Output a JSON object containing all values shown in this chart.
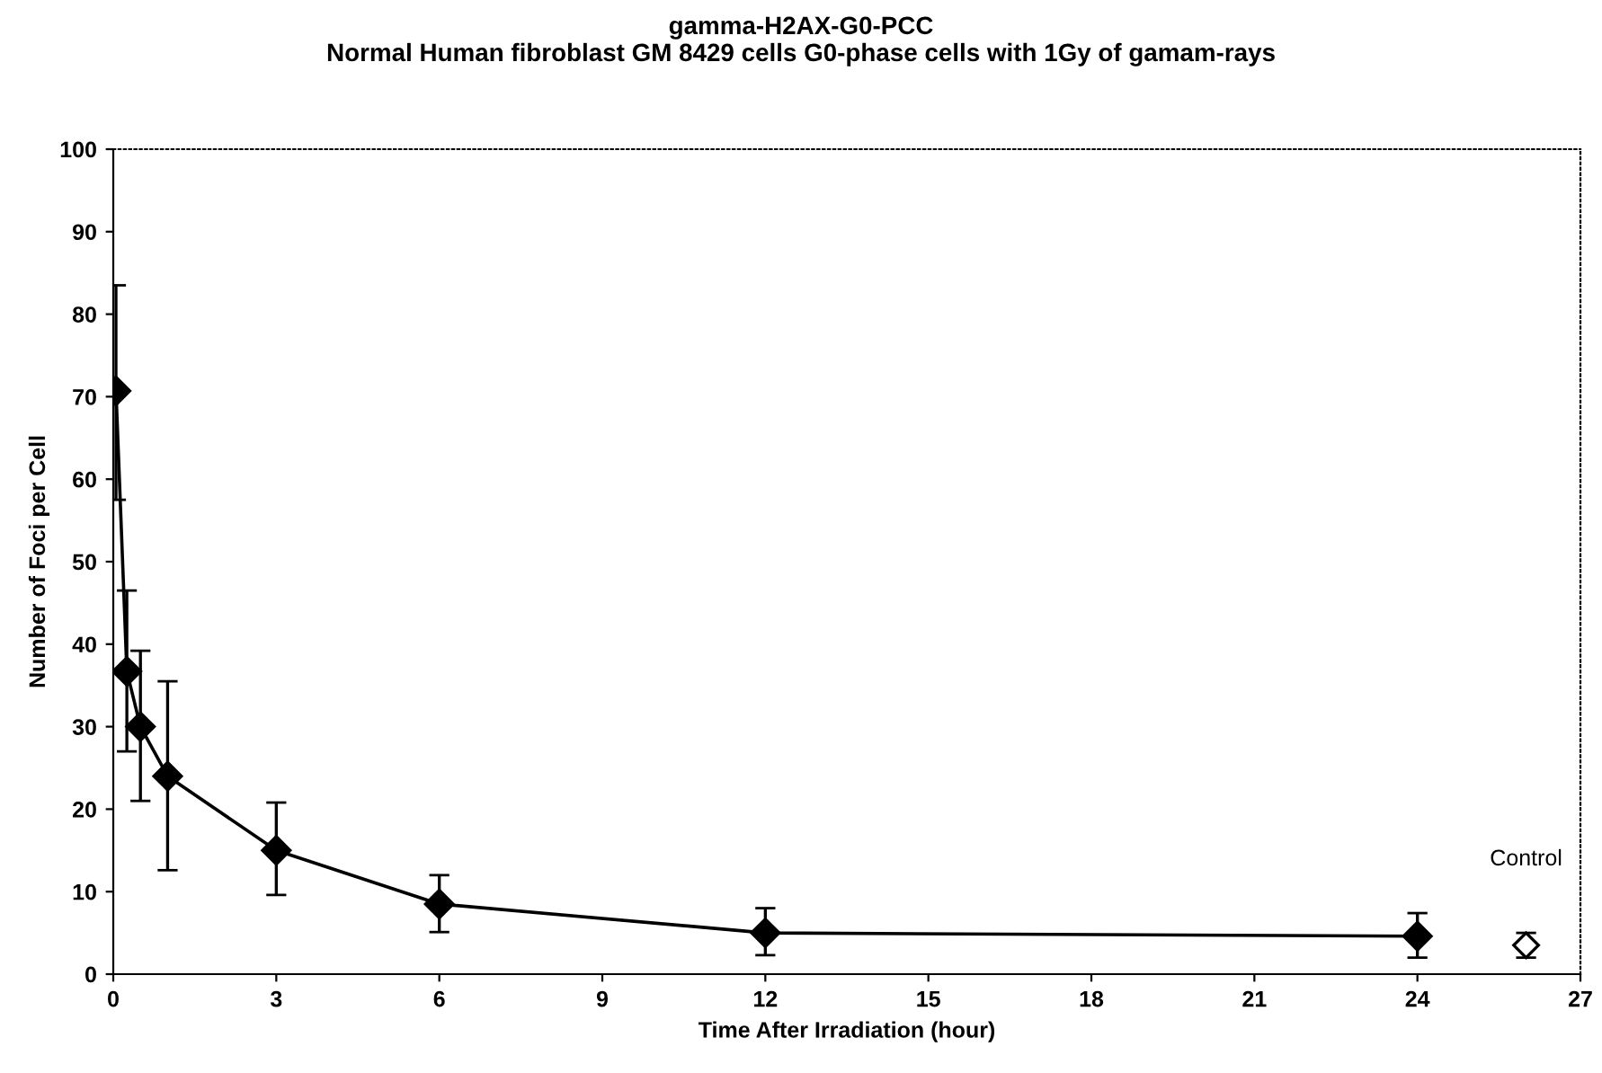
{
  "chart_data": {
    "type": "line",
    "title": "gamma-H2AX-G0-PCC\nNormal Human fibroblast GM 8429 cells G0-phase cells with 1Gy of gamam-rays",
    "xlabel": "Time After Irradiation (hour)",
    "ylabel": "Number of Foci per Cell",
    "xlim": [
      0,
      27
    ],
    "xticks": [
      0,
      3,
      6,
      9,
      12,
      15,
      18,
      21,
      24,
      27
    ],
    "ylim": [
      0,
      100
    ],
    "yticks": [
      0,
      10,
      20,
      30,
      40,
      50,
      60,
      70,
      80,
      90,
      100
    ],
    "grid": false,
    "legend": false,
    "marker": "diamond",
    "series": [
      {
        "color": "#000000",
        "x": [
          0.05,
          0.25,
          0.5,
          1,
          3,
          6,
          12,
          24
        ],
        "values": [
          70.7,
          36.7,
          30,
          24,
          15,
          8.5,
          5,
          4.6
        ],
        "errors": [
          [
            57.5,
            83.5
          ],
          [
            27,
            46.5
          ],
          [
            21,
            39.2
          ],
          [
            12.6,
            35.5
          ],
          [
            9.6,
            20.8
          ],
          [
            5.1,
            12
          ],
          [
            2.3,
            8
          ],
          [
            2,
            7.4
          ]
        ]
      },
      {
        "type": "scatter",
        "name": "Control",
        "color": "#000000",
        "x": [
          26
        ],
        "values": [
          3.5
        ],
        "errors": [
          [
            2,
            5
          ]
        ]
      }
    ]
  }
}
